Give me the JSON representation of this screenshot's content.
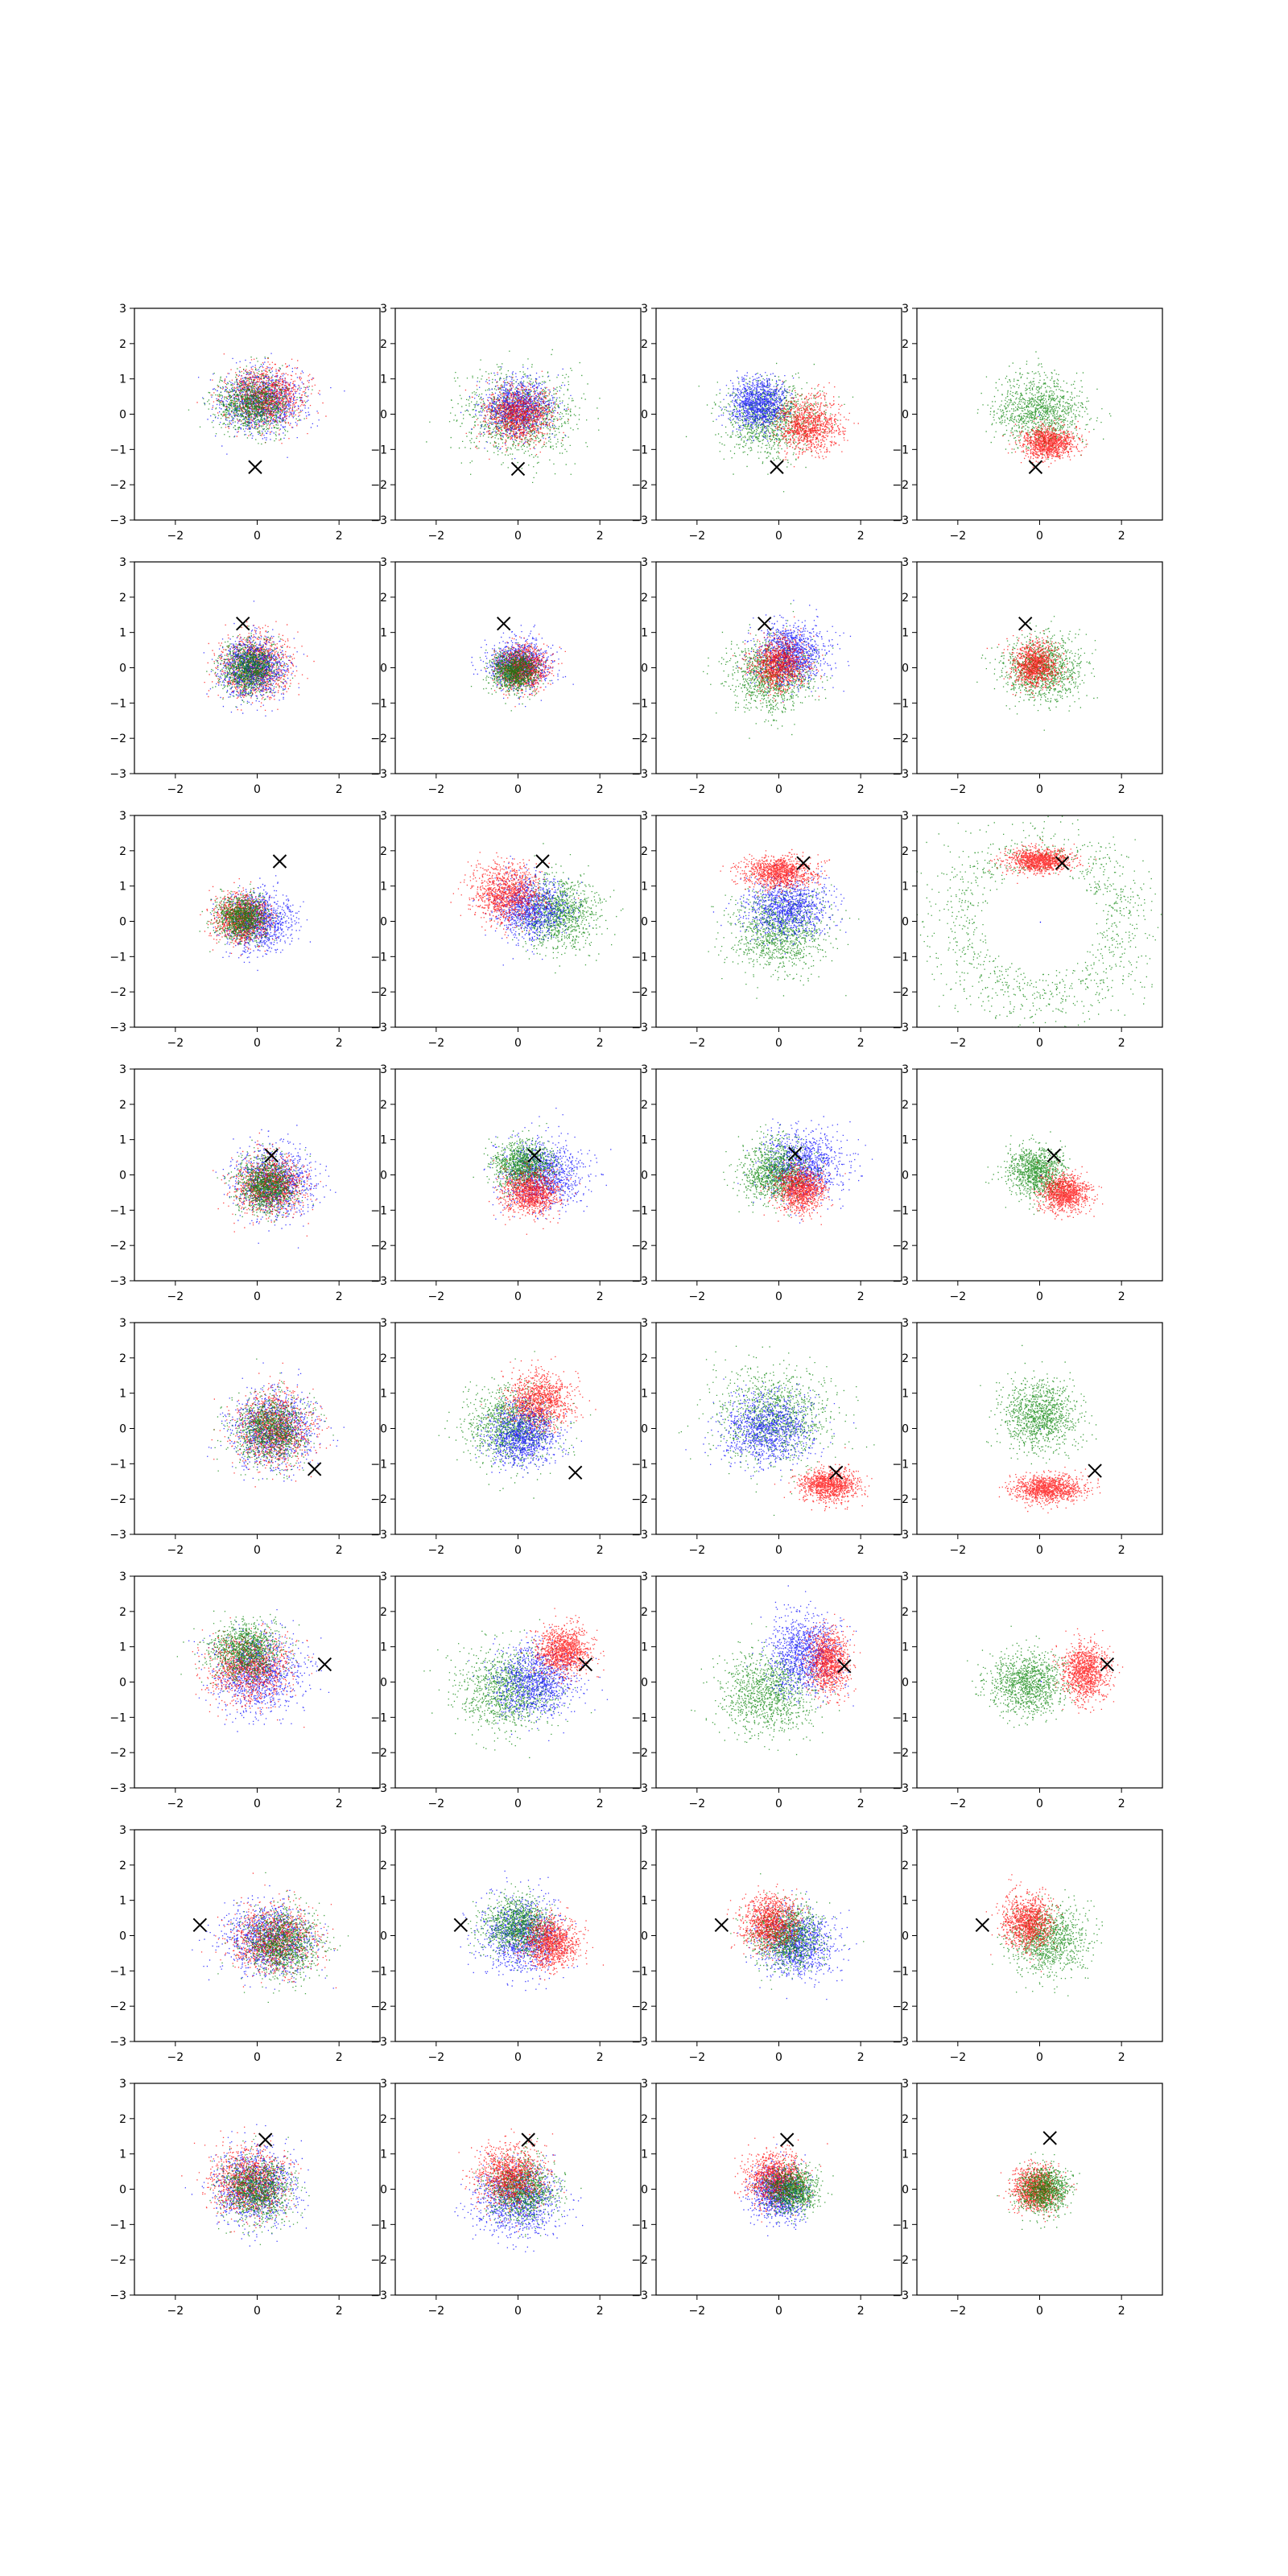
{
  "chart_data": {
    "type": "scatter",
    "title": "",
    "xlabel": "",
    "ylabel": "",
    "xlim": [
      -3,
      3
    ],
    "ylim": [
      -3,
      3
    ],
    "x_ticks": [
      "−2",
      "0",
      "2"
    ],
    "y_ticks": [
      "−3",
      "−2",
      "−1",
      "0",
      "1",
      "2",
      "3"
    ],
    "x_tick_values": [
      -2,
      0,
      2
    ],
    "y_tick_values": [
      -3,
      -2,
      -1,
      0,
      1,
      2,
      3
    ],
    "grid": false,
    "legend": "none",
    "rows": 8,
    "cols": 4,
    "colors": {
      "red": "#ff0000",
      "green": "#008000",
      "blue": "#0000ff",
      "marker": "#000000"
    },
    "marker_symbol": "x",
    "panels": [
      {
        "row": 0,
        "col": 0,
        "marker": [
          -0.05,
          -1.5
        ],
        "clusters": [
          {
            "color": "blue",
            "cx": 0.1,
            "cy": 0.4,
            "sx": 0.95,
            "sy": 0.8
          },
          {
            "color": "red",
            "cx": 0.2,
            "cy": 0.5,
            "sx": 0.85,
            "sy": 0.75
          },
          {
            "color": "green",
            "cx": -0.1,
            "cy": 0.3,
            "sx": 0.85,
            "sy": 0.75
          }
        ]
      },
      {
        "row": 0,
        "col": 1,
        "marker": [
          0.0,
          -1.55
        ],
        "clusters": [
          {
            "color": "green",
            "cx": 0.0,
            "cy": 0.0,
            "sx": 1.25,
            "sy": 1.1
          },
          {
            "color": "blue",
            "cx": 0.0,
            "cy": 0.2,
            "sx": 0.75,
            "sy": 0.75
          },
          {
            "color": "red",
            "cx": 0.0,
            "cy": 0.0,
            "sx": 0.7,
            "sy": 0.7
          }
        ]
      },
      {
        "row": 0,
        "col": 2,
        "marker": [
          -0.05,
          -1.5
        ],
        "clusters": [
          {
            "color": "green",
            "cx": -0.2,
            "cy": -0.1,
            "sx": 1.05,
            "sy": 0.95
          },
          {
            "color": "red",
            "cx": 0.7,
            "cy": -0.3,
            "sx": 0.7,
            "sy": 0.7
          },
          {
            "color": "blue",
            "cx": -0.5,
            "cy": 0.3,
            "sx": 0.6,
            "sy": 0.65
          }
        ]
      },
      {
        "row": 0,
        "col": 3,
        "marker": [
          -0.1,
          -1.5
        ],
        "clusters": [
          {
            "color": "green",
            "cx": 0.0,
            "cy": 0.1,
            "sx": 0.95,
            "sy": 0.9
          },
          {
            "color": "red",
            "cx": 0.2,
            "cy": -0.8,
            "sx": 0.6,
            "sy": 0.4
          },
          {
            "color": "blue",
            "cx": 0.0,
            "cy": 0.0,
            "sx": 0.02,
            "sy": 0.02
          }
        ]
      },
      {
        "row": 1,
        "col": 0,
        "marker": [
          -0.35,
          1.25
        ],
        "clusters": [
          {
            "color": "red",
            "cx": -0.1,
            "cy": 0.1,
            "sx": 0.75,
            "sy": 0.8
          },
          {
            "color": "blue",
            "cx": -0.1,
            "cy": 0.0,
            "sx": 0.7,
            "sy": 0.75
          },
          {
            "color": "green",
            "cx": -0.2,
            "cy": 0.0,
            "sx": 0.6,
            "sy": 0.65
          }
        ]
      },
      {
        "row": 1,
        "col": 1,
        "marker": [
          -0.35,
          1.25
        ],
        "clusters": [
          {
            "color": "blue",
            "cx": 0.0,
            "cy": 0.1,
            "sx": 0.65,
            "sy": 0.6
          },
          {
            "color": "red",
            "cx": 0.1,
            "cy": 0.0,
            "sx": 0.55,
            "sy": 0.55
          },
          {
            "color": "green",
            "cx": -0.1,
            "cy": -0.1,
            "sx": 0.5,
            "sy": 0.5
          }
        ]
      },
      {
        "row": 1,
        "col": 2,
        "marker": [
          -0.35,
          1.25
        ],
        "clusters": [
          {
            "color": "green",
            "cx": -0.2,
            "cy": -0.2,
            "sx": 0.9,
            "sy": 0.95
          },
          {
            "color": "blue",
            "cx": 0.3,
            "cy": 0.4,
            "sx": 0.75,
            "sy": 0.75
          },
          {
            "color": "red",
            "cx": 0.0,
            "cy": 0.1,
            "sx": 0.6,
            "sy": 0.65
          }
        ]
      },
      {
        "row": 1,
        "col": 3,
        "marker": [
          -0.35,
          1.25
        ],
        "clusters": [
          {
            "color": "green",
            "cx": 0.1,
            "cy": 0.0,
            "sx": 0.85,
            "sy": 0.85
          },
          {
            "color": "red",
            "cx": -0.1,
            "cy": 0.1,
            "sx": 0.5,
            "sy": 0.55
          },
          {
            "color": "blue",
            "cx": 0.0,
            "cy": 0.0,
            "sx": 0.02,
            "sy": 0.02
          }
        ]
      },
      {
        "row": 2,
        "col": 0,
        "marker": [
          0.55,
          1.7
        ],
        "clusters": [
          {
            "color": "blue",
            "cx": 0.0,
            "cy": 0.0,
            "sx": 0.75,
            "sy": 0.75
          },
          {
            "color": "red",
            "cx": -0.4,
            "cy": 0.1,
            "sx": 0.6,
            "sy": 0.6
          },
          {
            "color": "green",
            "cx": -0.4,
            "cy": 0.1,
            "sx": 0.55,
            "sy": 0.55
          }
        ]
      },
      {
        "row": 2,
        "col": 1,
        "marker": [
          0.6,
          1.7
        ],
        "clusters": [
          {
            "color": "green",
            "cx": 1.0,
            "cy": 0.2,
            "sx": 0.85,
            "sy": 0.9
          },
          {
            "color": "blue",
            "cx": 0.3,
            "cy": 0.4,
            "sx": 0.8,
            "sy": 0.8
          },
          {
            "color": "red",
            "cx": -0.3,
            "cy": 0.8,
            "sx": 0.75,
            "sy": 0.75
          }
        ]
      },
      {
        "row": 2,
        "col": 2,
        "marker": [
          0.6,
          1.65
        ],
        "clusters": [
          {
            "color": "green",
            "cx": 0.0,
            "cy": -0.3,
            "sx": 1.05,
            "sy": 1.05
          },
          {
            "color": "blue",
            "cx": 0.2,
            "cy": 0.4,
            "sx": 0.9,
            "sy": 0.75
          },
          {
            "color": "red",
            "cx": 0.0,
            "cy": 1.4,
            "sx": 0.8,
            "sy": 0.4
          }
        ]
      },
      {
        "row": 2,
        "col": 3,
        "marker": [
          0.55,
          1.65
        ],
        "clusters": [
          {
            "color": "green",
            "cx": 0.0,
            "cy": 0.0,
            "sx": 1.6,
            "sy": 1.6,
            "ring": true
          },
          {
            "color": "red",
            "cx": 0.0,
            "cy": 1.75,
            "sx": 0.7,
            "sy": 0.3
          },
          {
            "color": "blue",
            "cx": 0.0,
            "cy": 0.0,
            "sx": 0.02,
            "sy": 0.02
          }
        ]
      },
      {
        "row": 3,
        "col": 0,
        "marker": [
          0.35,
          0.55
        ],
        "clusters": [
          {
            "color": "blue",
            "cx": 0.4,
            "cy": -0.2,
            "sx": 0.85,
            "sy": 0.85
          },
          {
            "color": "red",
            "cx": 0.3,
            "cy": -0.3,
            "sx": 0.75,
            "sy": 0.75
          },
          {
            "color": "green",
            "cx": 0.2,
            "cy": -0.3,
            "sx": 0.65,
            "sy": 0.7
          }
        ]
      },
      {
        "row": 3,
        "col": 1,
        "marker": [
          0.4,
          0.55
        ],
        "clusters": [
          {
            "color": "blue",
            "cx": 0.6,
            "cy": 0.0,
            "sx": 0.85,
            "sy": 0.85
          },
          {
            "color": "green",
            "cx": 0.1,
            "cy": 0.3,
            "sx": 0.65,
            "sy": 0.6
          },
          {
            "color": "red",
            "cx": 0.3,
            "cy": -0.5,
            "sx": 0.6,
            "sy": 0.55
          }
        ]
      },
      {
        "row": 3,
        "col": 2,
        "marker": [
          0.4,
          0.6
        ],
        "clusters": [
          {
            "color": "blue",
            "cx": 0.6,
            "cy": 0.3,
            "sx": 0.9,
            "sy": 0.85
          },
          {
            "color": "green",
            "cx": -0.1,
            "cy": 0.1,
            "sx": 0.75,
            "sy": 0.75
          },
          {
            "color": "red",
            "cx": 0.5,
            "cy": -0.4,
            "sx": 0.55,
            "sy": 0.55
          }
        ]
      },
      {
        "row": 3,
        "col": 3,
        "marker": [
          0.35,
          0.55
        ],
        "clusters": [
          {
            "color": "green",
            "cx": -0.1,
            "cy": 0.1,
            "sx": 0.65,
            "sy": 0.65
          },
          {
            "color": "red",
            "cx": 0.6,
            "cy": -0.5,
            "sx": 0.5,
            "sy": 0.45
          },
          {
            "color": "blue",
            "cx": 0.0,
            "cy": 0.0,
            "sx": 0.02,
            "sy": 0.02
          }
        ]
      },
      {
        "row": 4,
        "col": 0,
        "marker": [
          1.4,
          -1.15
        ],
        "clusters": [
          {
            "color": "blue",
            "cx": 0.4,
            "cy": 0.0,
            "sx": 0.9,
            "sy": 0.95
          },
          {
            "color": "red",
            "cx": 0.4,
            "cy": 0.0,
            "sx": 0.85,
            "sy": 0.9
          },
          {
            "color": "green",
            "cx": 0.3,
            "cy": 0.0,
            "sx": 0.8,
            "sy": 0.85
          }
        ]
      },
      {
        "row": 4,
        "col": 1,
        "marker": [
          1.4,
          -1.25
        ],
        "clusters": [
          {
            "color": "green",
            "cx": -0.2,
            "cy": 0.1,
            "sx": 1.0,
            "sy": 0.95
          },
          {
            "color": "red",
            "cx": 0.5,
            "cy": 0.8,
            "sx": 0.7,
            "sy": 0.7
          },
          {
            "color": "blue",
            "cx": 0.1,
            "cy": -0.2,
            "sx": 0.75,
            "sy": 0.75
          }
        ]
      },
      {
        "row": 4,
        "col": 2,
        "marker": [
          1.4,
          -1.25
        ],
        "clusters": [
          {
            "color": "green",
            "cx": -0.1,
            "cy": 0.4,
            "sx": 1.3,
            "sy": 1.2
          },
          {
            "color": "blue",
            "cx": -0.3,
            "cy": 0.0,
            "sx": 1.0,
            "sy": 0.9
          },
          {
            "color": "red",
            "cx": 1.2,
            "cy": -1.6,
            "sx": 0.65,
            "sy": 0.4
          }
        ]
      },
      {
        "row": 4,
        "col": 3,
        "marker": [
          1.35,
          -1.2
        ],
        "clusters": [
          {
            "color": "green",
            "cx": 0.0,
            "cy": 0.4,
            "sx": 0.85,
            "sy": 0.9
          },
          {
            "color": "red",
            "cx": 0.2,
            "cy": -1.7,
            "sx": 0.75,
            "sy": 0.35
          },
          {
            "color": "blue",
            "cx": 0.0,
            "cy": 0.0,
            "sx": 0.02,
            "sy": 0.02
          }
        ]
      },
      {
        "row": 5,
        "col": 0,
        "marker": [
          1.65,
          0.5
        ],
        "clusters": [
          {
            "color": "blue",
            "cx": 0.0,
            "cy": 0.3,
            "sx": 0.95,
            "sy": 1.0
          },
          {
            "color": "red",
            "cx": -0.2,
            "cy": 0.4,
            "sx": 0.9,
            "sy": 0.85
          },
          {
            "color": "green",
            "cx": -0.3,
            "cy": 0.9,
            "sx": 0.75,
            "sy": 0.7
          }
        ]
      },
      {
        "row": 5,
        "col": 1,
        "marker": [
          1.65,
          0.5
        ],
        "clusters": [
          {
            "color": "green",
            "cx": -0.3,
            "cy": -0.2,
            "sx": 1.05,
            "sy": 1.05
          },
          {
            "color": "blue",
            "cx": 0.4,
            "cy": 0.0,
            "sx": 0.9,
            "sy": 0.9
          },
          {
            "color": "red",
            "cx": 1.1,
            "cy": 0.9,
            "sx": 0.6,
            "sy": 0.6
          }
        ]
      },
      {
        "row": 5,
        "col": 2,
        "marker": [
          1.6,
          0.45
        ],
        "clusters": [
          {
            "color": "green",
            "cx": -0.3,
            "cy": -0.3,
            "sx": 1.0,
            "sy": 1.0
          },
          {
            "color": "blue",
            "cx": 0.6,
            "cy": 0.8,
            "sx": 0.75,
            "sy": 1.0
          },
          {
            "color": "red",
            "cx": 1.2,
            "cy": 0.6,
            "sx": 0.45,
            "sy": 0.8
          }
        ]
      },
      {
        "row": 5,
        "col": 3,
        "marker": [
          1.65,
          0.5
        ],
        "clusters": [
          {
            "color": "green",
            "cx": -0.3,
            "cy": 0.0,
            "sx": 0.85,
            "sy": 0.8
          },
          {
            "color": "red",
            "cx": 1.1,
            "cy": 0.3,
            "sx": 0.5,
            "sy": 0.7
          },
          {
            "color": "blue",
            "cx": 0.0,
            "cy": 0.0,
            "sx": 0.02,
            "sy": 0.02
          }
        ]
      },
      {
        "row": 6,
        "col": 0,
        "marker": [
          -1.4,
          0.3
        ],
        "clusters": [
          {
            "color": "blue",
            "cx": 0.3,
            "cy": -0.1,
            "sx": 0.95,
            "sy": 0.9
          },
          {
            "color": "red",
            "cx": 0.4,
            "cy": -0.1,
            "sx": 0.9,
            "sy": 0.85
          },
          {
            "color": "green",
            "cx": 0.6,
            "cy": -0.2,
            "sx": 0.85,
            "sy": 0.85
          }
        ]
      },
      {
        "row": 6,
        "col": 1,
        "marker": [
          -1.4,
          0.3
        ],
        "clusters": [
          {
            "color": "blue",
            "cx": 0.1,
            "cy": 0.0,
            "sx": 0.9,
            "sy": 0.95
          },
          {
            "color": "green",
            "cx": 0.0,
            "cy": 0.3,
            "sx": 0.75,
            "sy": 0.7
          },
          {
            "color": "red",
            "cx": 0.8,
            "cy": -0.2,
            "sx": 0.6,
            "sy": 0.65
          }
        ]
      },
      {
        "row": 6,
        "col": 2,
        "marker": [
          -1.4,
          0.3
        ],
        "clusters": [
          {
            "color": "blue",
            "cx": 0.4,
            "cy": -0.2,
            "sx": 0.8,
            "sy": 0.85
          },
          {
            "color": "green",
            "cx": 0.2,
            "cy": 0.0,
            "sx": 0.75,
            "sy": 0.8
          },
          {
            "color": "red",
            "cx": -0.2,
            "cy": 0.4,
            "sx": 0.6,
            "sy": 0.7
          }
        ]
      },
      {
        "row": 6,
        "col": 3,
        "marker": [
          -1.4,
          0.3
        ],
        "clusters": [
          {
            "color": "green",
            "cx": 0.2,
            "cy": -0.1,
            "sx": 0.85,
            "sy": 0.85
          },
          {
            "color": "red",
            "cx": -0.3,
            "cy": 0.4,
            "sx": 0.55,
            "sy": 0.7
          },
          {
            "color": "blue",
            "cx": 0.0,
            "cy": 0.0,
            "sx": 0.02,
            "sy": 0.02
          }
        ]
      },
      {
        "row": 7,
        "col": 0,
        "marker": [
          0.2,
          1.4
        ],
        "clusters": [
          {
            "color": "blue",
            "cx": -0.1,
            "cy": 0.1,
            "sx": 0.9,
            "sy": 0.95
          },
          {
            "color": "red",
            "cx": -0.2,
            "cy": 0.2,
            "sx": 0.8,
            "sy": 0.85
          },
          {
            "color": "green",
            "cx": 0.0,
            "cy": 0.0,
            "sx": 0.75,
            "sy": 0.8
          }
        ]
      },
      {
        "row": 7,
        "col": 1,
        "marker": [
          0.25,
          1.4
        ],
        "clusters": [
          {
            "color": "blue",
            "cx": 0.0,
            "cy": -0.3,
            "sx": 0.9,
            "sy": 0.9
          },
          {
            "color": "green",
            "cx": 0.1,
            "cy": 0.0,
            "sx": 0.75,
            "sy": 0.75
          },
          {
            "color": "red",
            "cx": -0.2,
            "cy": 0.4,
            "sx": 0.75,
            "sy": 0.75
          }
        ]
      },
      {
        "row": 7,
        "col": 2,
        "marker": [
          0.2,
          1.4
        ],
        "clusters": [
          {
            "color": "blue",
            "cx": 0.0,
            "cy": -0.1,
            "sx": 0.6,
            "sy": 0.65
          },
          {
            "color": "red",
            "cx": -0.1,
            "cy": 0.3,
            "sx": 0.65,
            "sy": 0.65
          },
          {
            "color": "green",
            "cx": 0.3,
            "cy": 0.0,
            "sx": 0.55,
            "sy": 0.55
          }
        ]
      },
      {
        "row": 7,
        "col": 3,
        "marker": [
          0.25,
          1.45
        ],
        "clusters": [
          {
            "color": "red",
            "cx": -0.1,
            "cy": 0.0,
            "sx": 0.5,
            "sy": 0.55
          },
          {
            "color": "green",
            "cx": 0.1,
            "cy": 0.0,
            "sx": 0.55,
            "sy": 0.6
          },
          {
            "color": "blue",
            "cx": 0.0,
            "cy": 0.0,
            "sx": 0.02,
            "sy": 0.02
          }
        ]
      }
    ]
  }
}
